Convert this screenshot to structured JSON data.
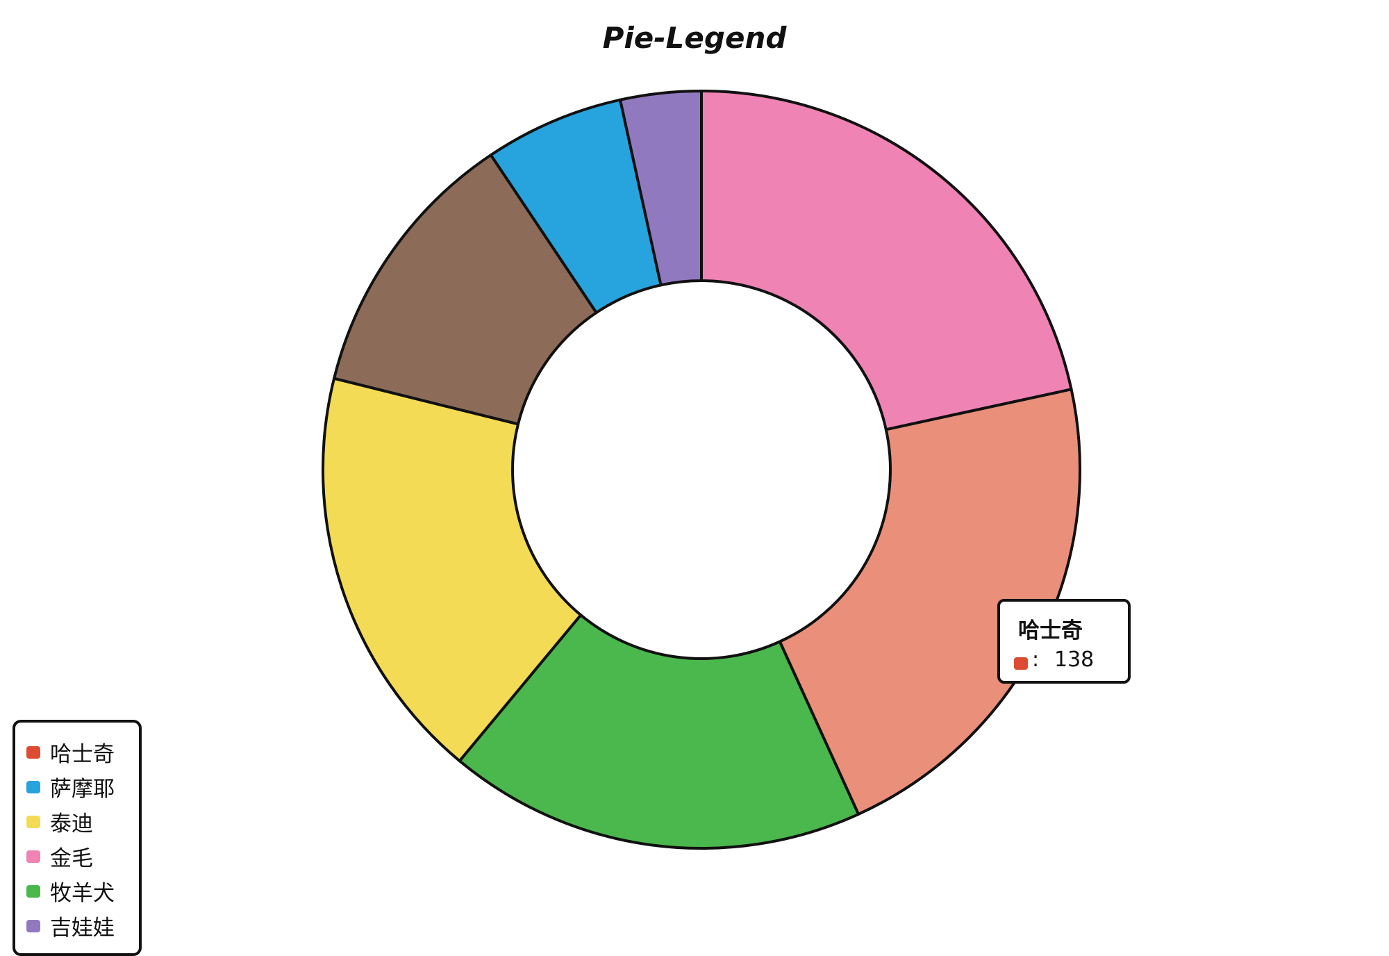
{
  "chart_data": {
    "type": "pie",
    "title": "Pie-Legend",
    "donut": true,
    "categories": [
      "哈士奇",
      "萨摩耶",
      "泰迪",
      "金毛",
      "牧羊犬",
      "吉娃娃"
    ],
    "values": [
      138,
      38,
      114,
      138,
      114,
      22
    ],
    "colors": [
      "#e98f7a",
      "#27a3de",
      "#f4db56",
      "#ef83b3",
      "#4bb84e",
      "#9179bf"
    ],
    "legend_colors": [
      "#dd4b32",
      "#27a3de",
      "#f4db56",
      "#ef83b3",
      "#4bb84e",
      "#9179bf"
    ],
    "extra_segment": {
      "value": 75,
      "color": "#8c6c58"
    },
    "legend": "bottom-left",
    "tooltip": {
      "title": "哈士奇",
      "separator": ":",
      "value": "138",
      "color": "#dd4b32"
    }
  }
}
